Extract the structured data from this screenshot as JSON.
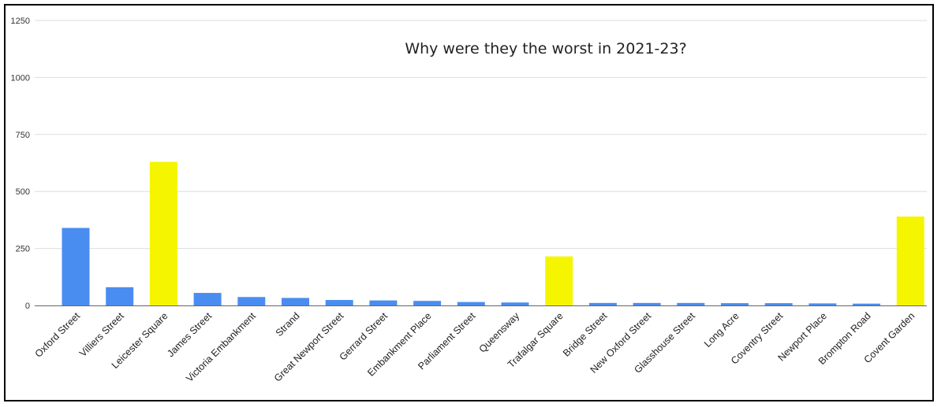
{
  "chart_data": {
    "type": "bar",
    "title": "Why were they the worst in 2021-23?",
    "xlabel": "",
    "ylabel": "",
    "ylim": [
      0,
      1250
    ],
    "yticks": [
      0,
      250,
      500,
      750,
      1000,
      1250
    ],
    "grid": true,
    "legend": "none",
    "categories": [
      "Oxford Street",
      "Villiers Street",
      "Leicester Square",
      "James Street",
      "Victoria Embankment",
      "Strand",
      "Great Newport Street",
      "Gerrard Street",
      "Embankment Place",
      "Parliament Street",
      "Queensway",
      "Trafalgar Square",
      "Bridge Street",
      "New Oxford Street",
      "Glasshouse Street",
      "Long Acre",
      "Coventry Street",
      "Newport Place",
      "Brompton Road",
      "Covent Garden"
    ],
    "values": [
      340,
      80,
      630,
      55,
      37,
      33,
      24,
      22,
      20,
      15,
      13,
      215,
      11,
      11,
      11,
      10,
      10,
      9,
      8,
      390
    ],
    "bar_colors": [
      "#4a8df0",
      "#4a8df0",
      "#f5f500",
      "#4a8df0",
      "#4a8df0",
      "#4a8df0",
      "#4a8df0",
      "#4a8df0",
      "#4a8df0",
      "#4a8df0",
      "#4a8df0",
      "#f5f500",
      "#4a8df0",
      "#4a8df0",
      "#4a8df0",
      "#4a8df0",
      "#4a8df0",
      "#4a8df0",
      "#4a8df0",
      "#f5f500"
    ],
    "colors": {
      "blue": "#4a8df0",
      "yellow": "#f5f500",
      "grid": "#dddddd",
      "axis": "#666666"
    }
  }
}
